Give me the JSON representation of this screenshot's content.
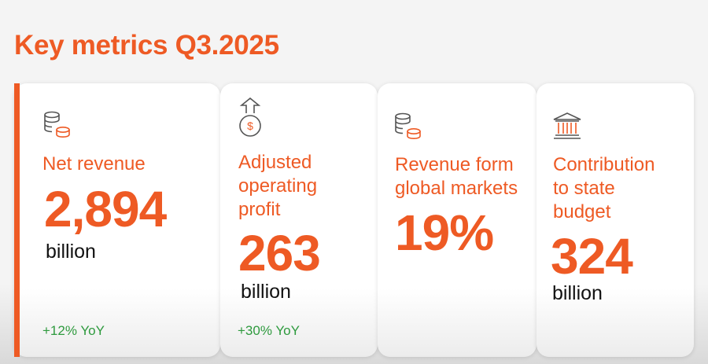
{
  "title": "Key metrics Q3.2025",
  "cards": [
    {
      "label_lines": [
        "Net revenue"
      ],
      "value": "2,894",
      "unit": "billion",
      "change": "+12% YoY"
    },
    {
      "label_lines": [
        "Adjusted",
        "operating",
        "profit"
      ],
      "value": "263",
      "unit": "billion",
      "change": "+30% YoY"
    },
    {
      "label_lines": [
        "Revenue form",
        "global markets"
      ],
      "value": "19%"
    },
    {
      "label_lines": [
        "Contribution",
        "to state",
        "budget"
      ],
      "value": "324",
      "unit": "billion"
    }
  ]
}
